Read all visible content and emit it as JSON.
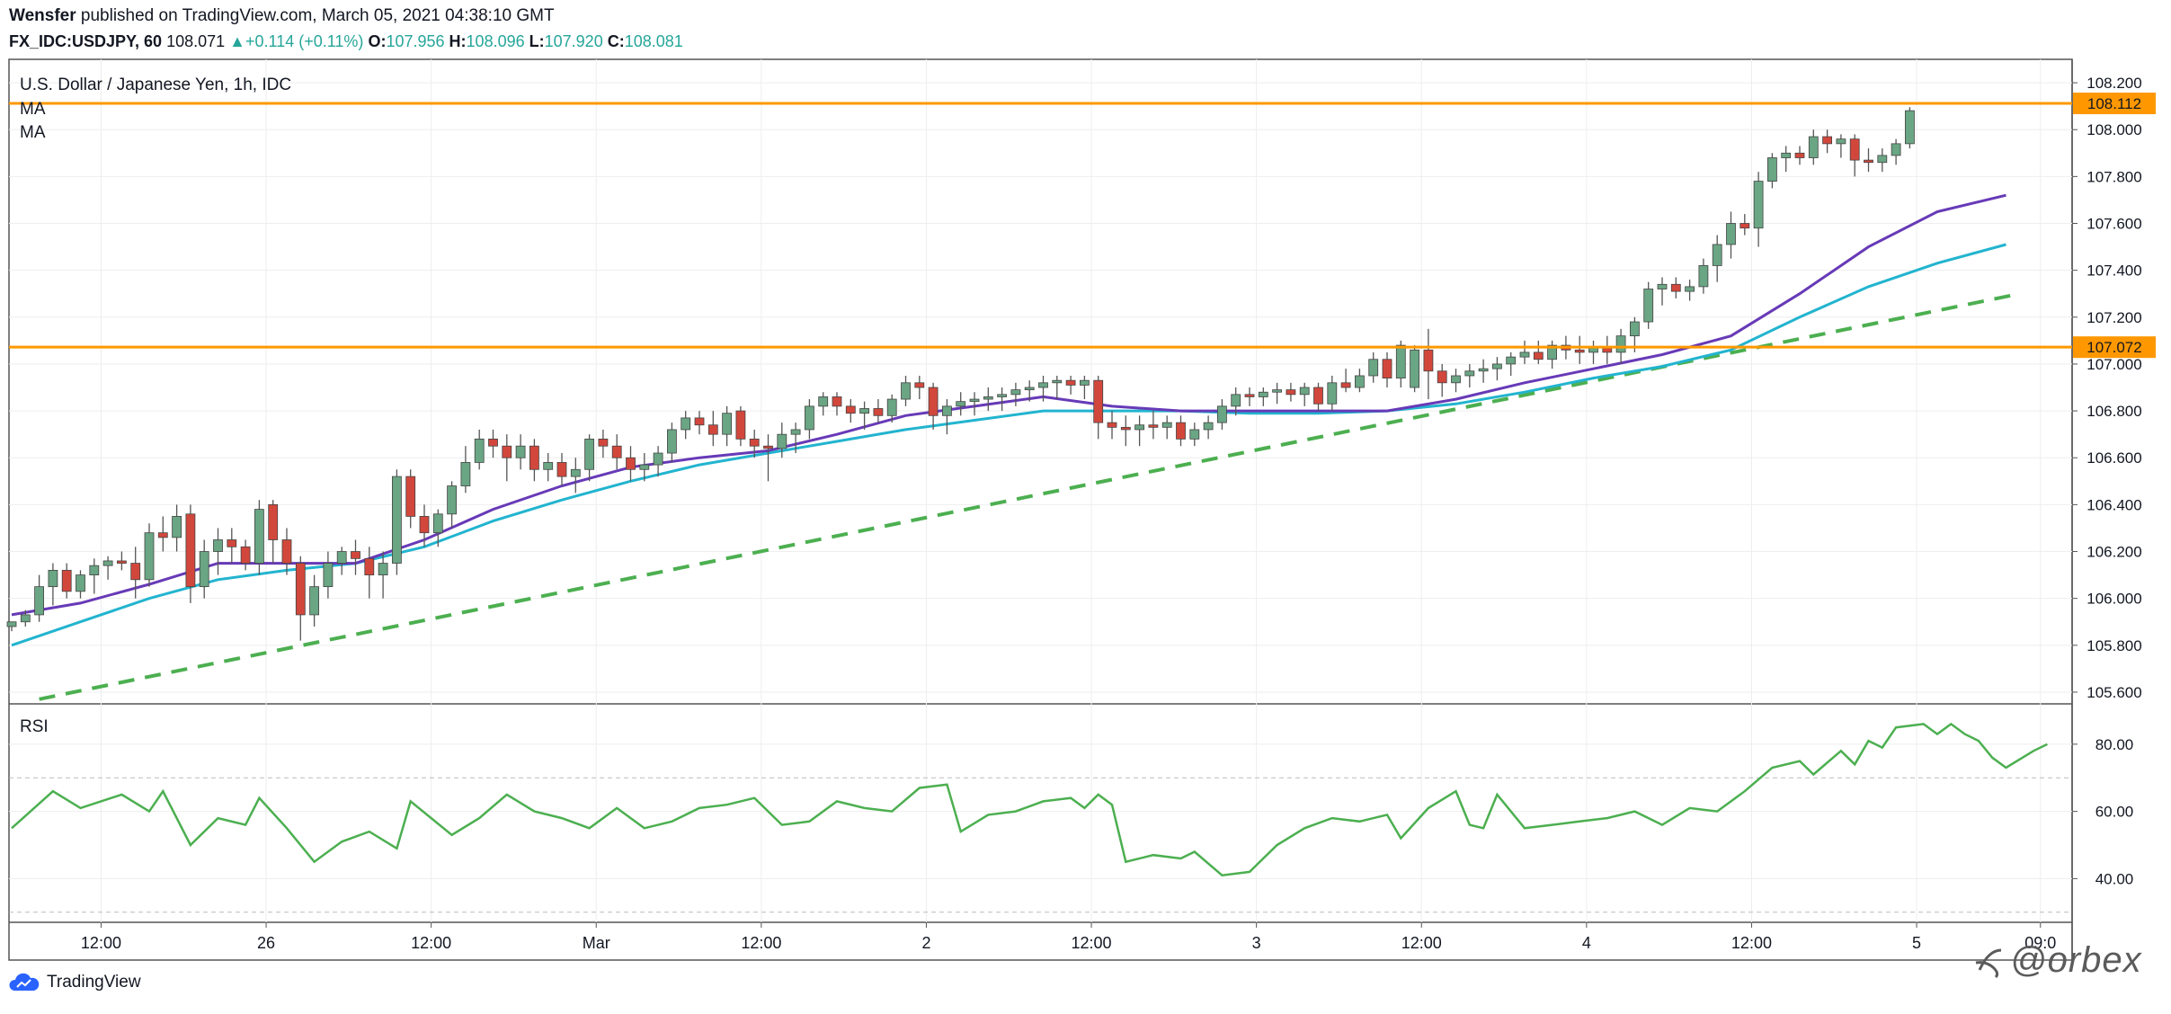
{
  "header": {
    "author": "Wensfer",
    "published_text": "published on TradingView.com, March 05, 2021 04:38:10 GMT",
    "symbol": "FX_IDC:USDJPY, 60",
    "last": "108.071",
    "change": "+0.114 (+0.11%)",
    "open_label": "O:",
    "open": "107.956",
    "high_label": "H:",
    "high": "108.096",
    "low_label": "L:",
    "low": "107.920",
    "close_label": "C:",
    "close": "108.081"
  },
  "main_pane": {
    "title": "U.S. Dollar / Japanese Yen, 1h, IDC",
    "indicator_1": "MA",
    "indicator_2": "MA"
  },
  "rsi_pane": {
    "label": "RSI"
  },
  "brand": {
    "name": "TradingView"
  },
  "watermark": {
    "text": "@orbex"
  },
  "colors": {
    "up": "#6aa584",
    "down": "#d2473c",
    "wick": "#555555",
    "ma_fast": "#673ab7",
    "ma_slow": "#22b4cf",
    "trend": "#4caf50",
    "level": "#ff9800",
    "rsi": "#4caf50",
    "grid": "#eeeeee"
  },
  "chart_data": {
    "type": "candlestick",
    "price_axis": {
      "range": [
        105.55,
        108.3
      ],
      "ticks": [
        "105.600",
        "105.800",
        "106.000",
        "106.200",
        "106.400",
        "106.600",
        "106.800",
        "107.000",
        "107.200",
        "107.400",
        "107.600",
        "107.800",
        "108.000",
        "108.200"
      ]
    },
    "rsi_axis": {
      "range": [
        27,
        92
      ],
      "ticks": [
        "40.00",
        "60.00",
        "80.00"
      ],
      "bands": [
        30,
        70
      ]
    },
    "time_axis": {
      "ticks": [
        {
          "label": "12:00",
          "bar": 6.5
        },
        {
          "label": "26",
          "bar": 18.5
        },
        {
          "label": "12:00",
          "bar": 30.5
        },
        {
          "label": "Mar",
          "bar": 42.5
        },
        {
          "label": "12:00",
          "bar": 54.5
        },
        {
          "label": "2",
          "bar": 66.5
        },
        {
          "label": "12:00",
          "bar": 78.5
        },
        {
          "label": "3",
          "bar": 90.5
        },
        {
          "label": "12:00",
          "bar": 102.5
        },
        {
          "label": "4",
          "bar": 114.5
        },
        {
          "label": "12:00",
          "bar": 126.5
        },
        {
          "label": "5",
          "bar": 138.5
        },
        {
          "label": "09:0",
          "bar": 147.5
        }
      ]
    },
    "levels": [
      {
        "value": 108.112,
        "label": "108.112"
      },
      {
        "value": 107.072,
        "label": "107.072"
      }
    ],
    "trendline": {
      "from": {
        "bar": 2,
        "value": 105.57
      },
      "to": {
        "bar": 146,
        "value": 107.3
      }
    },
    "candles": [
      [
        105.88,
        105.9,
        105.86,
        105.9
      ],
      [
        105.9,
        105.95,
        105.88,
        105.93
      ],
      [
        105.93,
        106.1,
        105.9,
        106.05
      ],
      [
        106.05,
        106.15,
        105.97,
        106.12
      ],
      [
        106.12,
        106.15,
        106.0,
        106.03
      ],
      [
        106.03,
        106.12,
        106.0,
        106.1
      ],
      [
        106.1,
        106.17,
        106.02,
        106.14
      ],
      [
        106.14,
        106.18,
        106.08,
        106.16
      ],
      [
        106.16,
        106.2,
        106.12,
        106.15
      ],
      [
        106.15,
        106.22,
        106.0,
        106.08
      ],
      [
        106.08,
        106.32,
        106.05,
        106.28
      ],
      [
        106.28,
        106.35,
        106.2,
        106.26
      ],
      [
        106.26,
        106.4,
        106.2,
        106.35
      ],
      [
        106.36,
        106.4,
        105.98,
        106.05
      ],
      [
        106.05,
        106.25,
        106.0,
        106.2
      ],
      [
        106.2,
        106.3,
        106.1,
        106.25
      ],
      [
        106.25,
        106.3,
        106.15,
        106.22
      ],
      [
        106.22,
        106.25,
        106.12,
        106.15
      ],
      [
        106.15,
        106.42,
        106.1,
        106.38
      ],
      [
        106.4,
        106.42,
        106.15,
        106.25
      ],
      [
        106.25,
        106.3,
        106.1,
        106.15
      ],
      [
        106.15,
        106.18,
        105.82,
        105.93
      ],
      [
        105.93,
        106.1,
        105.88,
        106.05
      ],
      [
        106.05,
        106.2,
        106.0,
        106.15
      ],
      [
        106.15,
        106.22,
        106.1,
        106.2
      ],
      [
        106.2,
        106.25,
        106.1,
        106.17
      ],
      [
        106.17,
        106.22,
        106.0,
        106.1
      ],
      [
        106.1,
        106.2,
        106.0,
        106.15
      ],
      [
        106.15,
        106.55,
        106.1,
        106.52
      ],
      [
        106.52,
        106.55,
        106.3,
        106.35
      ],
      [
        106.35,
        106.4,
        106.22,
        106.28
      ],
      [
        106.28,
        106.38,
        106.22,
        106.36
      ],
      [
        106.36,
        106.5,
        106.3,
        106.48
      ],
      [
        106.48,
        106.65,
        106.45,
        106.58
      ],
      [
        106.58,
        106.72,
        106.55,
        106.68
      ],
      [
        106.68,
        106.72,
        106.6,
        106.65
      ],
      [
        106.65,
        106.7,
        106.5,
        106.6
      ],
      [
        106.6,
        106.7,
        106.55,
        106.65
      ],
      [
        106.65,
        106.68,
        106.5,
        106.55
      ],
      [
        106.55,
        106.62,
        106.5,
        106.58
      ],
      [
        106.58,
        106.62,
        106.48,
        106.52
      ],
      [
        106.52,
        106.6,
        106.45,
        106.55
      ],
      [
        106.55,
        106.7,
        106.5,
        106.68
      ],
      [
        106.68,
        106.72,
        106.6,
        106.65
      ],
      [
        106.65,
        106.7,
        106.55,
        106.6
      ],
      [
        106.6,
        106.65,
        106.5,
        106.55
      ],
      [
        106.55,
        106.62,
        106.5,
        106.57
      ],
      [
        106.57,
        106.65,
        106.52,
        106.62
      ],
      [
        106.62,
        106.75,
        106.58,
        106.72
      ],
      [
        106.72,
        106.8,
        106.68,
        106.77
      ],
      [
        106.77,
        106.8,
        106.7,
        106.74
      ],
      [
        106.74,
        106.8,
        106.65,
        106.7
      ],
      [
        106.7,
        106.82,
        106.65,
        106.79
      ],
      [
        106.8,
        106.82,
        106.65,
        106.68
      ],
      [
        106.68,
        106.72,
        106.6,
        106.65
      ],
      [
        106.65,
        106.7,
        106.5,
        106.64
      ],
      [
        106.64,
        106.75,
        106.6,
        106.7
      ],
      [
        106.7,
        106.75,
        106.62,
        106.72
      ],
      [
        106.72,
        106.85,
        106.68,
        106.82
      ],
      [
        106.82,
        106.88,
        106.78,
        106.86
      ],
      [
        106.86,
        106.88,
        106.78,
        106.82
      ],
      [
        106.82,
        106.85,
        106.75,
        106.79
      ],
      [
        106.79,
        106.84,
        106.72,
        106.81
      ],
      [
        106.81,
        106.85,
        106.75,
        106.78
      ],
      [
        106.78,
        106.87,
        106.75,
        106.85
      ],
      [
        106.85,
        106.95,
        106.82,
        106.92
      ],
      [
        106.92,
        106.95,
        106.85,
        106.9
      ],
      [
        106.9,
        106.92,
        106.72,
        106.78
      ],
      [
        106.78,
        106.85,
        106.7,
        106.82
      ],
      [
        106.82,
        106.88,
        106.78,
        106.84
      ],
      [
        106.84,
        106.88,
        106.78,
        106.85
      ],
      [
        106.85,
        106.9,
        106.8,
        106.86
      ],
      [
        106.86,
        106.9,
        106.8,
        106.87
      ],
      [
        106.87,
        106.92,
        106.82,
        106.89
      ],
      [
        106.89,
        106.93,
        106.84,
        106.9
      ],
      [
        106.9,
        106.95,
        106.84,
        106.92
      ],
      [
        106.92,
        106.95,
        106.85,
        106.93
      ],
      [
        106.93,
        106.95,
        106.87,
        106.91
      ],
      [
        106.91,
        106.95,
        106.85,
        106.93
      ],
      [
        106.93,
        106.95,
        106.68,
        106.75
      ],
      [
        106.75,
        106.8,
        106.68,
        106.73
      ],
      [
        106.73,
        106.78,
        106.65,
        106.72
      ],
      [
        106.72,
        106.78,
        106.65,
        106.74
      ],
      [
        106.74,
        106.8,
        106.68,
        106.73
      ],
      [
        106.73,
        106.78,
        106.68,
        106.75
      ],
      [
        106.75,
        106.78,
        106.65,
        106.68
      ],
      [
        106.68,
        106.75,
        106.65,
        106.72
      ],
      [
        106.72,
        106.78,
        106.68,
        106.75
      ],
      [
        106.75,
        106.85,
        106.72,
        106.82
      ],
      [
        106.82,
        106.9,
        106.78,
        106.87
      ],
      [
        106.87,
        106.9,
        106.82,
        106.86
      ],
      [
        106.86,
        106.9,
        106.82,
        106.88
      ],
      [
        106.88,
        106.92,
        106.83,
        106.89
      ],
      [
        106.89,
        106.92,
        106.84,
        106.87
      ],
      [
        106.87,
        106.92,
        106.82,
        106.9
      ],
      [
        106.9,
        106.92,
        106.8,
        106.83
      ],
      [
        106.83,
        106.95,
        106.8,
        106.92
      ],
      [
        106.92,
        106.98,
        106.88,
        106.9
      ],
      [
        106.9,
        106.98,
        106.88,
        106.95
      ],
      [
        106.95,
        107.05,
        106.92,
        107.02
      ],
      [
        107.02,
        107.05,
        106.9,
        106.94
      ],
      [
        106.94,
        107.1,
        106.9,
        107.08
      ],
      [
        106.9,
        107.08,
        106.88,
        107.06
      ],
      [
        107.06,
        107.15,
        106.85,
        106.97
      ],
      [
        106.97,
        107.0,
        106.86,
        106.92
      ],
      [
        106.92,
        106.98,
        106.88,
        106.95
      ],
      [
        106.95,
        107.0,
        106.9,
        106.97
      ],
      [
        106.97,
        107.02,
        106.92,
        106.98
      ],
      [
        106.98,
        107.03,
        106.93,
        107.0
      ],
      [
        107.0,
        107.05,
        106.95,
        107.03
      ],
      [
        107.03,
        107.1,
        107.0,
        107.05
      ],
      [
        107.05,
        107.1,
        107.0,
        107.02
      ],
      [
        107.02,
        107.1,
        106.98,
        107.08
      ],
      [
        107.08,
        107.12,
        107.02,
        107.06
      ],
      [
        107.06,
        107.12,
        107.0,
        107.05
      ],
      [
        107.05,
        107.1,
        107.0,
        107.07
      ],
      [
        107.07,
        107.12,
        107.0,
        107.05
      ],
      [
        107.05,
        107.15,
        107.0,
        107.12
      ],
      [
        107.12,
        107.2,
        107.05,
        107.18
      ],
      [
        107.18,
        107.35,
        107.15,
        107.32
      ],
      [
        107.32,
        107.37,
        107.25,
        107.34
      ],
      [
        107.34,
        107.37,
        107.28,
        107.31
      ],
      [
        107.31,
        107.36,
        107.27,
        107.33
      ],
      [
        107.33,
        107.45,
        107.3,
        107.42
      ],
      [
        107.42,
        107.55,
        107.35,
        107.51
      ],
      [
        107.51,
        107.65,
        107.45,
        107.6
      ],
      [
        107.6,
        107.64,
        107.55,
        107.58
      ],
      [
        107.58,
        107.82,
        107.5,
        107.78
      ],
      [
        107.78,
        107.9,
        107.75,
        107.88
      ],
      [
        107.88,
        107.93,
        107.82,
        107.9
      ],
      [
        107.9,
        107.93,
        107.85,
        107.88
      ],
      [
        107.88,
        108.0,
        107.85,
        107.97
      ],
      [
        107.97,
        108.0,
        107.9,
        107.94
      ],
      [
        107.94,
        107.98,
        107.88,
        107.96
      ],
      [
        107.96,
        107.98,
        107.8,
        107.87
      ],
      [
        107.87,
        107.92,
        107.82,
        107.86
      ],
      [
        107.86,
        107.92,
        107.82,
        107.89
      ],
      [
        107.89,
        107.96,
        107.85,
        107.94
      ],
      [
        107.94,
        108.096,
        107.92,
        108.081
      ]
    ],
    "ma_fast": [
      [
        0,
        105.93
      ],
      [
        5,
        105.98
      ],
      [
        10,
        106.06
      ],
      [
        15,
        106.15
      ],
      [
        20,
        106.15
      ],
      [
        25,
        106.15
      ],
      [
        30,
        106.25
      ],
      [
        35,
        106.38
      ],
      [
        40,
        106.48
      ],
      [
        45,
        106.56
      ],
      [
        50,
        106.6
      ],
      [
        55,
        106.63
      ],
      [
        60,
        106.7
      ],
      [
        65,
        106.78
      ],
      [
        70,
        106.82
      ],
      [
        75,
        106.86
      ],
      [
        80,
        106.82
      ],
      [
        85,
        106.8
      ],
      [
        90,
        106.8
      ],
      [
        95,
        106.8
      ],
      [
        100,
        106.8
      ],
      [
        105,
        106.85
      ],
      [
        110,
        106.92
      ],
      [
        115,
        106.98
      ],
      [
        120,
        107.04
      ],
      [
        125,
        107.12
      ],
      [
        130,
        107.3
      ],
      [
        135,
        107.5
      ],
      [
        140,
        107.65
      ],
      [
        145,
        107.72
      ]
    ],
    "ma_slow": [
      [
        0,
        105.8
      ],
      [
        5,
        105.9
      ],
      [
        10,
        106.0
      ],
      [
        15,
        106.08
      ],
      [
        20,
        106.12
      ],
      [
        25,
        106.15
      ],
      [
        30,
        106.22
      ],
      [
        35,
        106.33
      ],
      [
        40,
        106.42
      ],
      [
        45,
        106.5
      ],
      [
        50,
        106.57
      ],
      [
        55,
        106.62
      ],
      [
        60,
        106.67
      ],
      [
        65,
        106.72
      ],
      [
        70,
        106.76
      ],
      [
        75,
        106.8
      ],
      [
        80,
        106.8
      ],
      [
        85,
        106.8
      ],
      [
        90,
        106.79
      ],
      [
        95,
        106.79
      ],
      [
        100,
        106.8
      ],
      [
        105,
        106.83
      ],
      [
        110,
        106.88
      ],
      [
        115,
        106.94
      ],
      [
        120,
        106.99
      ],
      [
        125,
        107.06
      ],
      [
        130,
        107.2
      ],
      [
        135,
        107.33
      ],
      [
        140,
        107.43
      ],
      [
        145,
        107.51
      ]
    ],
    "rsi": [
      [
        0,
        55
      ],
      [
        3,
        66
      ],
      [
        5,
        61
      ],
      [
        8,
        65
      ],
      [
        10,
        60
      ],
      [
        11,
        66
      ],
      [
        13,
        50
      ],
      [
        15,
        58
      ],
      [
        17,
        56
      ],
      [
        18,
        64
      ],
      [
        20,
        55
      ],
      [
        22,
        45
      ],
      [
        24,
        51
      ],
      [
        26,
        54
      ],
      [
        28,
        49
      ],
      [
        29,
        63
      ],
      [
        32,
        53
      ],
      [
        34,
        58
      ],
      [
        36,
        65
      ],
      [
        38,
        60
      ],
      [
        40,
        58
      ],
      [
        42,
        55
      ],
      [
        44,
        61
      ],
      [
        46,
        55
      ],
      [
        48,
        57
      ],
      [
        50,
        61
      ],
      [
        52,
        62
      ],
      [
        54,
        64
      ],
      [
        56,
        56
      ],
      [
        58,
        57
      ],
      [
        60,
        63
      ],
      [
        62,
        61
      ],
      [
        64,
        60
      ],
      [
        66,
        67
      ],
      [
        68,
        68
      ],
      [
        69,
        54
      ],
      [
        71,
        59
      ],
      [
        73,
        60
      ],
      [
        75,
        63
      ],
      [
        77,
        64
      ],
      [
        78,
        61
      ],
      [
        79,
        65
      ],
      [
        80,
        62
      ],
      [
        81,
        45
      ],
      [
        83,
        47
      ],
      [
        85,
        46
      ],
      [
        86,
        48
      ],
      [
        88,
        41
      ],
      [
        90,
        42
      ],
      [
        92,
        50
      ],
      [
        94,
        55
      ],
      [
        96,
        58
      ],
      [
        98,
        57
      ],
      [
        100,
        59
      ],
      [
        101,
        52
      ],
      [
        103,
        61
      ],
      [
        105,
        66
      ],
      [
        106,
        56
      ],
      [
        107,
        55
      ],
      [
        108,
        65
      ],
      [
        110,
        55
      ],
      [
        112,
        56
      ],
      [
        114,
        57
      ],
      [
        116,
        58
      ],
      [
        118,
        60
      ],
      [
        120,
        56
      ],
      [
        122,
        61
      ],
      [
        124,
        60
      ],
      [
        126,
        66
      ],
      [
        128,
        73
      ],
      [
        130,
        75
      ],
      [
        131,
        71
      ],
      [
        133,
        78
      ],
      [
        134,
        74
      ],
      [
        135,
        81
      ],
      [
        136,
        79
      ],
      [
        137,
        85
      ],
      [
        139,
        86
      ],
      [
        140,
        83
      ],
      [
        141,
        86
      ],
      [
        142,
        83
      ],
      [
        143,
        81
      ],
      [
        144,
        76
      ],
      [
        145,
        73
      ],
      [
        147,
        78
      ],
      [
        148,
        80
      ]
    ]
  }
}
